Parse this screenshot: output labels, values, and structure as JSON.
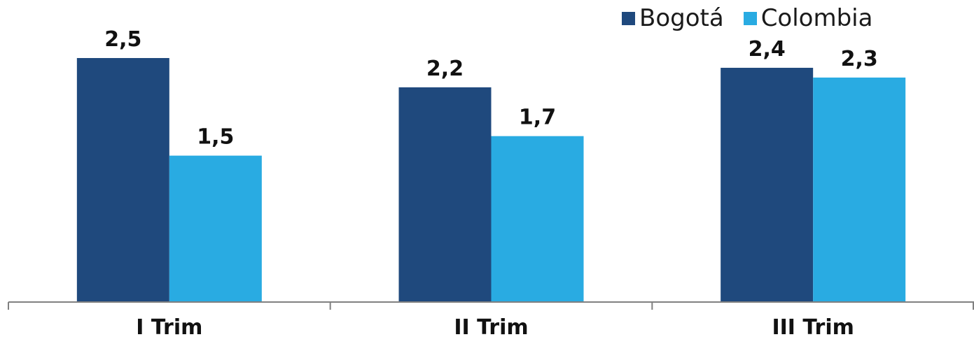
{
  "chart_data": {
    "type": "bar",
    "categories": [
      "I Trim",
      "II Trim",
      "III Trim"
    ],
    "series": [
      {
        "name": "Bogotá",
        "values": [
          2.5,
          2.2,
          2.4
        ],
        "labels": [
          "2,5",
          "2,2",
          "2,4"
        ],
        "color": "#1f497d"
      },
      {
        "name": "Colombia",
        "values": [
          1.5,
          1.7,
          2.3
        ],
        "labels": [
          "1,5",
          "1,7",
          "2,3"
        ],
        "color": "#29abe2"
      }
    ],
    "ylim": [
      0,
      3
    ],
    "grid": false,
    "legend": "top-right"
  }
}
